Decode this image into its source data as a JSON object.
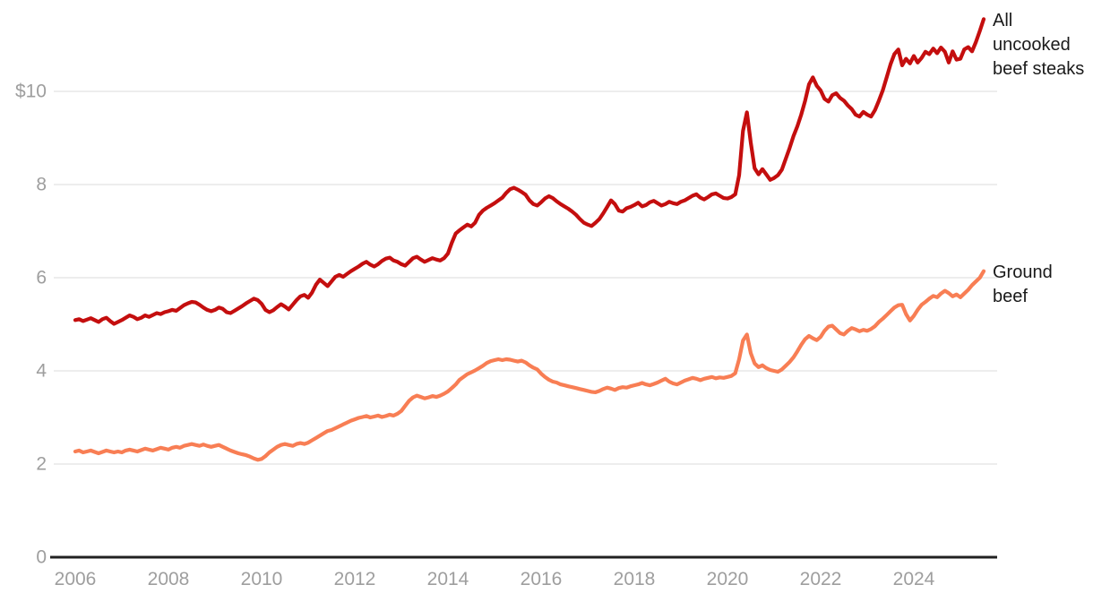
{
  "chart_data": {
    "type": "line",
    "title": "",
    "x": {
      "start_year": 2006,
      "points_per_year": 12,
      "end": "mid-2025",
      "tick_years": [
        2006,
        2008,
        2010,
        2012,
        2014,
        2016,
        2018,
        2020,
        2022,
        2024
      ]
    },
    "y": {
      "ticks": [
        {
          "value": 0,
          "label": "0"
        },
        {
          "value": 2,
          "label": "2"
        },
        {
          "value": 4,
          "label": "4"
        },
        {
          "value": 6,
          "label": "6"
        },
        {
          "value": 8,
          "label": "8"
        },
        {
          "value": 10,
          "label": "$10"
        }
      ],
      "gridlines": [
        2,
        4,
        6,
        8,
        10
      ],
      "range": [
        0,
        11.8
      ],
      "grid": true
    },
    "legend_position": "right-of-line-ends",
    "series": [
      {
        "name": "all-uncooked-beef-steaks",
        "label": "All uncooked beef steaks",
        "color": "#c40e0e",
        "values": [
          5.09,
          5.11,
          5.07,
          5.1,
          5.13,
          5.09,
          5.05,
          5.11,
          5.14,
          5.07,
          5.01,
          5.05,
          5.09,
          5.14,
          5.19,
          5.16,
          5.11,
          5.14,
          5.19,
          5.16,
          5.2,
          5.24,
          5.22,
          5.26,
          5.28,
          5.31,
          5.29,
          5.35,
          5.41,
          5.45,
          5.48,
          5.47,
          5.42,
          5.36,
          5.31,
          5.28,
          5.31,
          5.36,
          5.33,
          5.26,
          5.24,
          5.29,
          5.34,
          5.39,
          5.45,
          5.5,
          5.55,
          5.52,
          5.44,
          5.31,
          5.26,
          5.3,
          5.37,
          5.43,
          5.38,
          5.32,
          5.42,
          5.52,
          5.6,
          5.63,
          5.57,
          5.68,
          5.85,
          5.96,
          5.89,
          5.82,
          5.92,
          6.02,
          6.06,
          6.02,
          6.08,
          6.14,
          6.19,
          6.24,
          6.3,
          6.34,
          6.28,
          6.24,
          6.29,
          6.36,
          6.41,
          6.43,
          6.37,
          6.34,
          6.29,
          6.26,
          6.34,
          6.42,
          6.45,
          6.39,
          6.34,
          6.38,
          6.42,
          6.39,
          6.37,
          6.42,
          6.52,
          6.75,
          6.95,
          7.02,
          7.08,
          7.14,
          7.1,
          7.18,
          7.35,
          7.44,
          7.5,
          7.55,
          7.6,
          7.66,
          7.72,
          7.82,
          7.9,
          7.93,
          7.89,
          7.84,
          7.78,
          7.66,
          7.58,
          7.55,
          7.62,
          7.7,
          7.75,
          7.71,
          7.64,
          7.58,
          7.53,
          7.48,
          7.42,
          7.35,
          7.26,
          7.18,
          7.14,
          7.11,
          7.18,
          7.26,
          7.38,
          7.52,
          7.66,
          7.58,
          7.44,
          7.42,
          7.49,
          7.52,
          7.56,
          7.61,
          7.53,
          7.56,
          7.62,
          7.65,
          7.6,
          7.55,
          7.58,
          7.63,
          7.6,
          7.58,
          7.63,
          7.66,
          7.71,
          7.76,
          7.79,
          7.72,
          7.68,
          7.73,
          7.79,
          7.81,
          7.76,
          7.71,
          7.7,
          7.73,
          7.79,
          8.2,
          9.15,
          9.55,
          8.9,
          8.35,
          8.22,
          8.33,
          8.22,
          8.1,
          8.14,
          8.2,
          8.32,
          8.55,
          8.78,
          9.04,
          9.25,
          9.5,
          9.8,
          10.15,
          10.3,
          10.12,
          10.02,
          9.84,
          9.78,
          9.92,
          9.96,
          9.86,
          9.8,
          9.7,
          9.62,
          9.5,
          9.46,
          9.56,
          9.5,
          9.46,
          9.6,
          9.8,
          10.02,
          10.3,
          10.58,
          10.8,
          10.9,
          10.56,
          10.7,
          10.6,
          10.76,
          10.62,
          10.72,
          10.85,
          10.8,
          10.92,
          10.82,
          10.94,
          10.85,
          10.62,
          10.86,
          10.68,
          10.7,
          10.9,
          10.95,
          10.86,
          11.06,
          11.3,
          11.55
        ]
      },
      {
        "name": "ground-beef",
        "label": "Ground beef",
        "color": "#f87e54",
        "values": [
          2.27,
          2.29,
          2.25,
          2.27,
          2.29,
          2.26,
          2.23,
          2.26,
          2.29,
          2.27,
          2.25,
          2.27,
          2.25,
          2.29,
          2.31,
          2.29,
          2.27,
          2.3,
          2.33,
          2.31,
          2.29,
          2.32,
          2.35,
          2.33,
          2.31,
          2.35,
          2.37,
          2.35,
          2.39,
          2.41,
          2.43,
          2.41,
          2.39,
          2.42,
          2.39,
          2.37,
          2.39,
          2.41,
          2.37,
          2.33,
          2.29,
          2.26,
          2.23,
          2.21,
          2.19,
          2.16,
          2.12,
          2.09,
          2.11,
          2.17,
          2.25,
          2.31,
          2.37,
          2.41,
          2.43,
          2.41,
          2.39,
          2.43,
          2.45,
          2.43,
          2.46,
          2.51,
          2.56,
          2.61,
          2.66,
          2.71,
          2.73,
          2.77,
          2.81,
          2.85,
          2.89,
          2.93,
          2.96,
          2.99,
          3.01,
          3.03,
          3.0,
          3.02,
          3.04,
          3.01,
          3.03,
          3.06,
          3.04,
          3.08,
          3.14,
          3.25,
          3.36,
          3.43,
          3.47,
          3.44,
          3.41,
          3.43,
          3.46,
          3.44,
          3.47,
          3.51,
          3.56,
          3.63,
          3.71,
          3.81,
          3.87,
          3.93,
          3.97,
          4.01,
          4.06,
          4.11,
          4.17,
          4.21,
          4.23,
          4.25,
          4.23,
          4.25,
          4.24,
          4.22,
          4.2,
          4.22,
          4.18,
          4.12,
          4.07,
          4.03,
          3.94,
          3.87,
          3.81,
          3.77,
          3.75,
          3.71,
          3.69,
          3.67,
          3.65,
          3.63,
          3.61,
          3.59,
          3.57,
          3.55,
          3.54,
          3.57,
          3.61,
          3.64,
          3.62,
          3.59,
          3.63,
          3.65,
          3.64,
          3.67,
          3.69,
          3.71,
          3.74,
          3.71,
          3.69,
          3.72,
          3.75,
          3.79,
          3.83,
          3.77,
          3.73,
          3.71,
          3.75,
          3.79,
          3.82,
          3.85,
          3.83,
          3.8,
          3.83,
          3.85,
          3.87,
          3.84,
          3.86,
          3.85,
          3.87,
          3.89,
          3.95,
          4.25,
          4.65,
          4.78,
          4.38,
          4.16,
          4.08,
          4.12,
          4.06,
          4.02,
          4.0,
          3.98,
          4.03,
          4.11,
          4.19,
          4.29,
          4.42,
          4.56,
          4.68,
          4.75,
          4.7,
          4.66,
          4.73,
          4.86,
          4.95,
          4.97,
          4.89,
          4.81,
          4.78,
          4.86,
          4.92,
          4.89,
          4.85,
          4.88,
          4.86,
          4.9,
          4.96,
          5.05,
          5.12,
          5.2,
          5.28,
          5.36,
          5.41,
          5.42,
          5.22,
          5.08,
          5.18,
          5.31,
          5.42,
          5.48,
          5.55,
          5.61,
          5.58,
          5.66,
          5.72,
          5.67,
          5.6,
          5.64,
          5.58,
          5.66,
          5.74,
          5.84,
          5.92,
          6.0,
          6.14
        ]
      }
    ]
  },
  "style_colors": {
    "gridline": "#e7e7e7",
    "axis_line": "#222222",
    "tick_label": "#9e9e9e",
    "series_label": "#1a1a1a"
  }
}
